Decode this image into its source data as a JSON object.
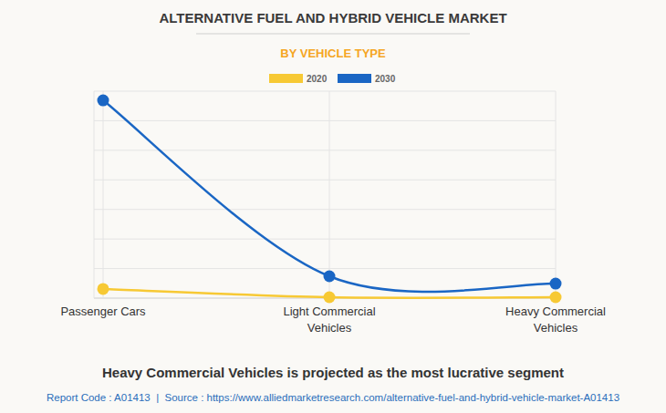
{
  "chart_data": {
    "type": "line",
    "title": "ALTERNATIVE FUEL AND HYBRID VEHICLE MARKET",
    "subtitle": "BY VEHICLE TYPE",
    "categories": [
      "Passenger Cars",
      "Light Commercial Vehicles",
      "Heavy Commercial Vehicles"
    ],
    "series": [
      {
        "name": "2020",
        "color": "#f7c934",
        "values": [
          0.31,
          0.03,
          0.03
        ],
        "marker": "circle"
      },
      {
        "name": "2030",
        "color": "#1a66c4",
        "values": [
          6.69,
          0.74,
          0.49
        ],
        "marker": "circle"
      }
    ],
    "ylim": [
      0,
      7
    ],
    "yticks": [
      0,
      1,
      2,
      3,
      4,
      5,
      6,
      7
    ],
    "grid": true,
    "tick_labels": "x",
    "legend": "top",
    "annotations": [
      "Heavy Commercial Vehicles is projected as the most lucrative segment",
      "Report Code : A01413  |  Source : https://www.alliedmarketresearch.com/alternative-fuel-and-hybrid-vehicle-market-A01413"
    ]
  }
}
